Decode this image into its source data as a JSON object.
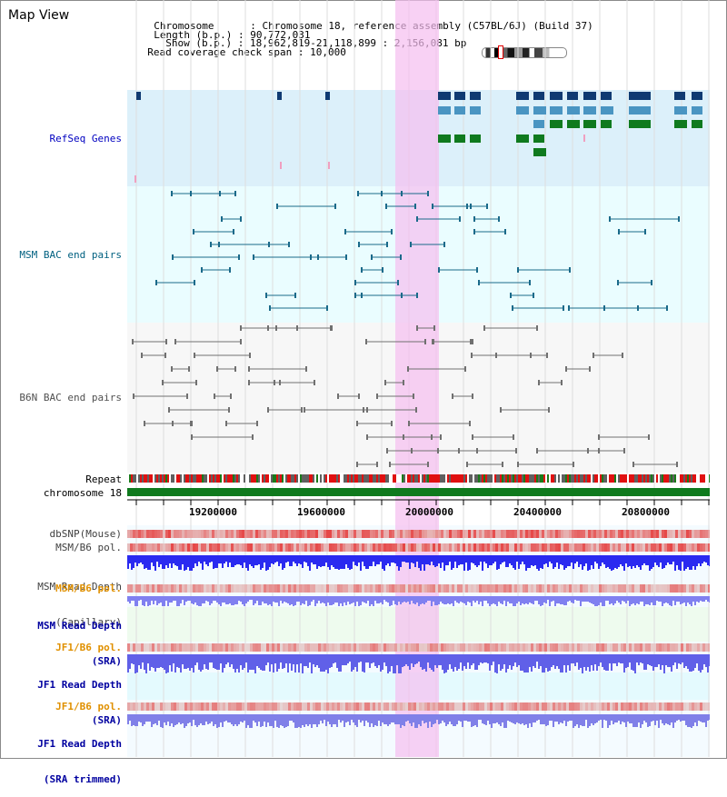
{
  "title": "Map View",
  "header": {
    "chromosome_label": "Chromosome",
    "chromosome_value": "Chromosome 18, reference assembly (C57BL/6J) (Build 37)",
    "length_label": "Length (b.p.)",
    "length_value": "90,772,031",
    "show_label": "Show (b.p.)",
    "show_value": "18,962,819-21,118,899 : 2,156,081 bp",
    "coverage_label": "Read coverage check span",
    "coverage_value": "10,000"
  },
  "tracks": {
    "refseq": "RefSeq Genes",
    "msm_bac": "MSM BAC end pairs",
    "b6n_bac": "B6N BAC end pairs",
    "repeat": "Repeat",
    "chromosome": "chromosome 18",
    "dbsnp": "dbSNP(Mouse)",
    "msm_b6_pol": "MSM/B6 pol.",
    "msm_depth_cap_1": "MSM Read Depth",
    "msm_depth_cap_2": "(Capillary)",
    "msm_b6_pol2": "MSM/B6 pol.",
    "msm_depth_sra_1": "MSM Read Depth",
    "msm_depth_sra_2": "(SRA)",
    "jf1_b6_pol": "JF1/B6 pol.",
    "jf1_depth_sra_1": "JF1 Read Depth",
    "jf1_depth_sra_2": "(SRA)",
    "jf1_b6_pol2": "JF1/B6 pol.",
    "jf1_depth_trim_1": "JF1 Read Depth",
    "jf1_depth_trim_2": "(SRA trimmed)"
  },
  "axis": {
    "ticks": [
      "19200000",
      "19600000",
      "20000000",
      "20400000",
      "20800000"
    ]
  },
  "colors": {
    "refseq_bg": "#dcf0fa",
    "bac_bg": "#eafdff",
    "highlight": "#f5c8f0",
    "gene_dark": "#0f3a72",
    "gene_mid": "#4a95c2",
    "gene_green": "#0f7a1e",
    "bac_msm": "#1a6a8a",
    "bac_b6n": "#707070",
    "chrom_bar": "#0f7a1e",
    "depth_blue": "#2a2af0",
    "orange_label": "#e09000",
    "navy_label": "#0000a0"
  }
}
